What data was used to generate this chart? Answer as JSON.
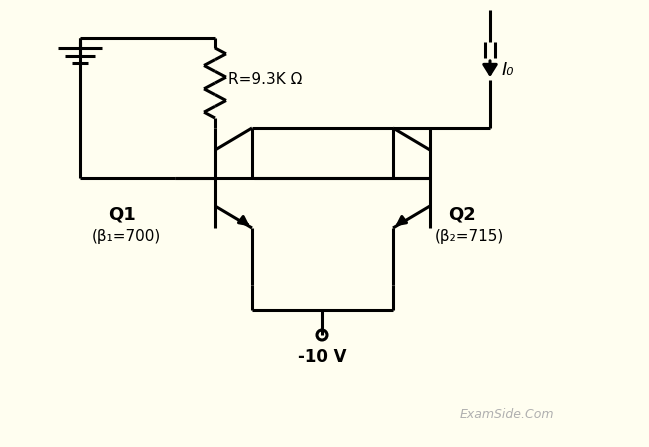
{
  "background_color": "#fffef0",
  "line_color": "#000000",
  "text_color": "#000000",
  "watermark_color": "#b0b0b0",
  "watermark": "ExamSide.Com",
  "R_label": "R=9.3K Ω",
  "Q1_label": "Q1",
  "Q1_beta": "(β₁=700)",
  "Q2_label": "Q2",
  "Q2_beta": "(β₂=715)",
  "V_label": "-10 V",
  "I0_label": "I₀",
  "lw": 2.2
}
